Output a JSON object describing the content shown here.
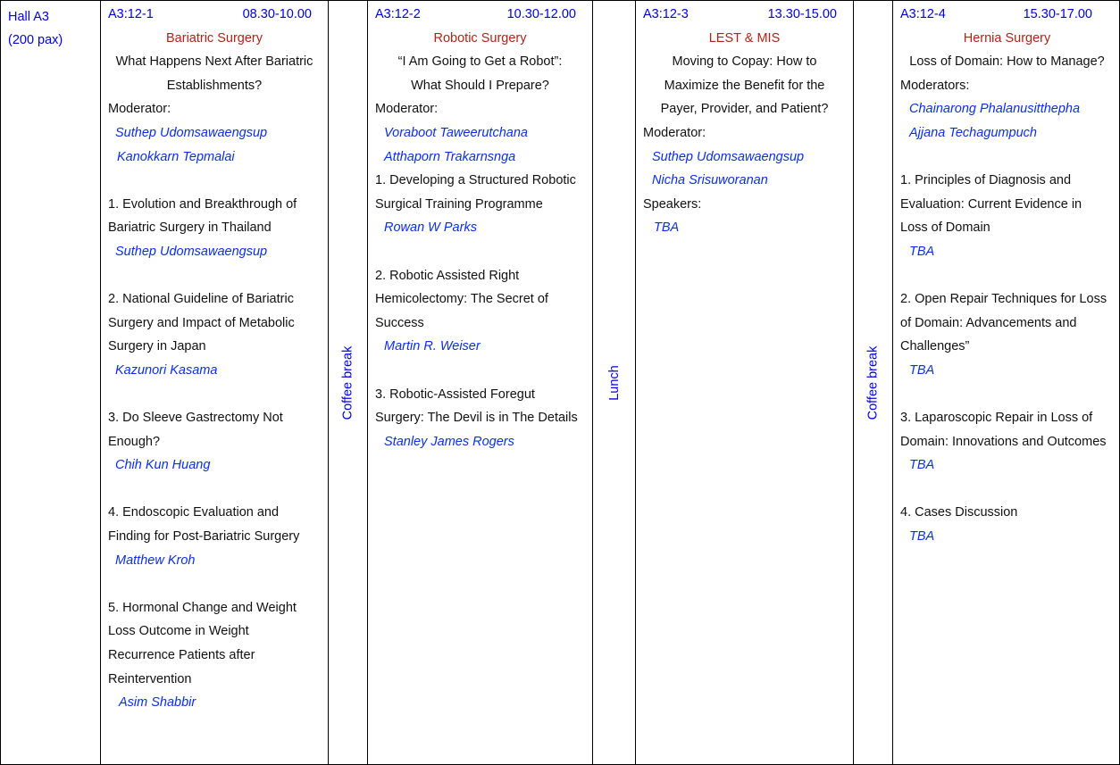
{
  "hall": {
    "name": "Hall A3",
    "capacity": "(200 pax)"
  },
  "sessions": [
    {
      "code": "A3:12-1",
      "time": "08.30-10.00",
      "track": "Bariatric Surgery",
      "title_lines": [
        "What Happens Next After Bariatric",
        "Establishments?"
      ],
      "moderator_label": "Moderator:",
      "moderators": [
        "Suthep Udomsawaengsup",
        "Kanokkarn Tepmalai"
      ],
      "talks": [
        {
          "title_lines": [
            "1. Evolution and Breakthrough of",
            "Bariatric Surgery in Thailand"
          ],
          "speaker": "Suthep Udomsawaengsup"
        },
        {
          "title_lines": [
            "2. National Guideline of Bariatric",
            "Surgery and Impact of Metabolic",
            "Surgery in Japan"
          ],
          "speaker": "Kazunori Kasama"
        },
        {
          "title_lines": [
            "3. Do Sleeve Gastrectomy Not",
            "Enough?"
          ],
          "speaker": "Chih Kun Huang"
        },
        {
          "title_lines": [
            "4. Endoscopic Evaluation and",
            "Finding for Post-Bariatric Surgery"
          ],
          "speaker": "Matthew Kroh"
        },
        {
          "title_lines": [
            "5. Hormonal Change and Weight",
            "Loss Outcome in Weight",
            "Recurrence Patients after",
            "Reintervention"
          ],
          "speaker": "Asim Shabbir"
        }
      ]
    },
    {
      "code": "A3:12-2",
      "time": "10.30-12.00",
      "track": "Robotic Surgery",
      "title_lines": [
        "“I Am Going to Get a Robot”:",
        "What Should I Prepare?"
      ],
      "moderator_label": "Moderator:",
      "moderators": [
        "Voraboot Taweerutchana",
        "Atthaporn Trakarnsnga"
      ],
      "talks": [
        {
          "title_lines": [
            "1. Developing a Structured Robotic",
            "Surgical Training Programme"
          ],
          "speaker": "Rowan W Parks"
        },
        {
          "title_lines": [
            "2. Robotic Assisted Right",
            "Hemicolectomy: The Secret of",
            "Success"
          ],
          "speaker": "Martin R. Weiser"
        },
        {
          "title_lines": [
            "3. Robotic-Assisted Foregut",
            "Surgery: The Devil is in The Details"
          ],
          "speaker": "Stanley James Rogers"
        }
      ]
    },
    {
      "code": "A3:12-3",
      "time": "13.30-15.00",
      "track": "LEST & MIS",
      "title_lines": [
        "Moving to Copay: How to",
        "Maximize the Benefit for the",
        "Payer, Provider, and Patient?"
      ],
      "moderator_label": "Moderator:",
      "moderators": [
        "Suthep Udomsawaengsup",
        "Nicha Srisuworanan"
      ],
      "speakers_label": "Speakers:",
      "speakers": [
        "TBA"
      ]
    },
    {
      "code": "A3:12-4",
      "time": "15.30-17.00",
      "track": "Hernia Surgery",
      "title_lines": [
        "Loss of Domain: How to Manage?"
      ],
      "moderator_label": "Moderators:",
      "moderators": [
        "Chainarong Phalanusitthepha",
        "Ajjana Techagumpuch"
      ],
      "talks": [
        {
          "title_lines": [
            "1. Principles of Diagnosis and",
            "Evaluation: Current Evidence in",
            "Loss of Domain"
          ],
          "speaker": "TBA"
        },
        {
          "title_lines": [
            "2. Open Repair Techniques for Loss",
            "of Domain: Advancements and",
            "Challenges”"
          ],
          "speaker": "TBA"
        },
        {
          "title_lines": [
            "3. Laparoscopic Repair in Loss of",
            "Domain: Innovations and Outcomes"
          ],
          "speaker": "TBA"
        },
        {
          "title_lines": [
            "4. Cases Discussion"
          ],
          "speaker": "TBA"
        }
      ]
    }
  ],
  "breaks": [
    "Coffee break",
    "Lunch",
    "Coffee break"
  ]
}
